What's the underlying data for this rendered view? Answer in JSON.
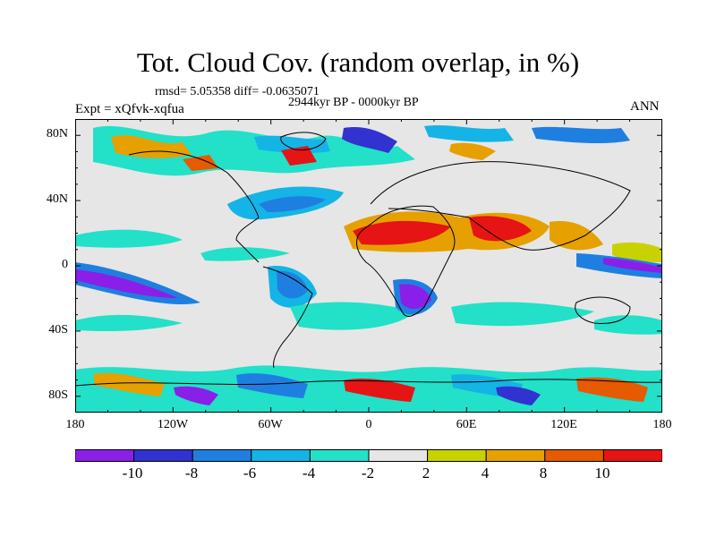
{
  "title": "Tot. Cloud Cov. (random overlap, in %)",
  "stats": "rmsd= 5.05358 diff= -0.0635071",
  "period": "2944kyr BP - 0000kyr BP",
  "expt": "Expt = xQfvk-xqfua",
  "season": "ANN",
  "lat_labels": [
    "80N",
    "40N",
    "0",
    "40S",
    "80S"
  ],
  "lon_labels": [
    "180",
    "120W",
    "60W",
    "0",
    "60E",
    "120E",
    "180"
  ],
  "colorbar": {
    "labels": [
      "-10",
      "-8",
      "-6",
      "-4",
      "-2",
      "2",
      "4",
      "8",
      "10"
    ],
    "colors": [
      "#8a1fe8",
      "#3232d0",
      "#1f7fe0",
      "#14b4e6",
      "#23e0c8",
      "#e6e6e6",
      "#c8d200",
      "#e6a000",
      "#e65a00",
      "#e61414"
    ]
  },
  "map": {
    "ocean_fill": "#e6e6e6",
    "coast_color": "#000000",
    "lon_range": [
      -180,
      180
    ],
    "lat_range": [
      -90,
      90
    ]
  }
}
